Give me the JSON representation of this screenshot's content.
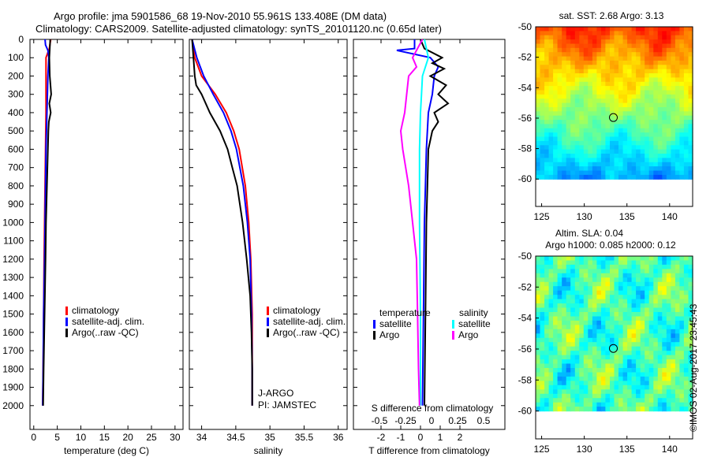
{
  "title": {
    "line1": "Argo profile: jma 5901586_68 19-Nov-2010 55.961S 133.408E (DM data)",
    "line2": "Climatology: CARS2009. Satellite-adjusted climatology: synTS_20101120.nc (0.65d later)"
  },
  "credit": "©IMOS 02-Aug-2017 23:45:43",
  "colors": {
    "climatology": "#ff0000",
    "satellite": "#0000ff",
    "argo": "#000000",
    "sal_satellite": "#00ffff",
    "sal_argo": "#ff00ff"
  },
  "chart_data": [
    {
      "type": "line",
      "id": "temp",
      "xlabel": "temperature (deg C)",
      "ylabel": "",
      "xlim": [
        -0.8,
        31.7
      ],
      "ylim": [
        2130,
        0
      ],
      "xticks": [
        0,
        5,
        10,
        15,
        20,
        25,
        30
      ],
      "yticks": [
        0,
        100,
        200,
        300,
        400,
        500,
        600,
        700,
        800,
        900,
        1000,
        1100,
        1200,
        1300,
        1400,
        1500,
        1600,
        1700,
        1800,
        1900,
        2000
      ],
      "legend": [
        "climatology",
        "satellite-adj. clim.",
        "Argo(..raw -QC)"
      ],
      "series": [
        {
          "name": "climatology",
          "color": "#ff0000",
          "depth": [
            0,
            50,
            100,
            200,
            400,
            600,
            800,
            1000,
            1200,
            1500,
            1800,
            2000
          ],
          "value": [
            3.6,
            3.3,
            2.6,
            2.6,
            2.6,
            2.5,
            2.4,
            2.3,
            2.2,
            2.1,
            2.0,
            1.9
          ]
        },
        {
          "name": "satellite-adj. clim.",
          "color": "#0000ff",
          "depth": [
            0,
            30,
            60,
            100,
            200,
            400,
            600,
            800,
            1000,
            1200,
            1500,
            1800,
            2000
          ],
          "value": [
            2.4,
            2.5,
            3.0,
            3.2,
            3.0,
            2.8,
            2.6,
            2.5,
            2.4,
            2.3,
            2.1,
            2.0,
            1.9
          ]
        },
        {
          "name": "Argo(..raw -QC)",
          "color": "#000000",
          "depth": [
            0,
            50,
            100,
            200,
            300,
            350,
            400,
            450,
            500,
            600,
            800,
            1000,
            1200,
            1500,
            1800,
            2000
          ],
          "value": [
            3.5,
            3.4,
            3.3,
            3.4,
            3.7,
            3.3,
            3.6,
            3.2,
            3.1,
            3.0,
            2.8,
            2.6,
            2.5,
            2.3,
            2.1,
            2.0
          ]
        }
      ]
    },
    {
      "type": "line",
      "id": "sal",
      "xlabel": "salinity",
      "xlim": [
        33.82,
        36.13
      ],
      "ylim": [
        2130,
        0
      ],
      "xticks": [
        34,
        34.5,
        35,
        35.5,
        36
      ],
      "legend": [
        "climatology",
        "satellite-adj. clim.",
        "Argo(..raw -QC)"
      ],
      "annotations": [
        "J-ARGO",
        "PI: JAMSTEC"
      ],
      "series": [
        {
          "name": "climatology",
          "color": "#ff0000",
          "depth": [
            0,
            100,
            200,
            300,
            400,
            500,
            600,
            800,
            1000,
            1200,
            1500,
            1800,
            2000
          ],
          "value": [
            33.86,
            33.9,
            34.0,
            34.2,
            34.36,
            34.47,
            34.55,
            34.64,
            34.69,
            34.72,
            34.74,
            34.74,
            34.74
          ]
        },
        {
          "name": "satellite-adj. clim.",
          "color": "#0000ff",
          "depth": [
            0,
            100,
            200,
            300,
            400,
            500,
            600,
            800,
            1000,
            1200,
            1500,
            1800,
            2000
          ],
          "value": [
            33.86,
            33.93,
            34.03,
            34.17,
            34.32,
            34.43,
            34.51,
            34.61,
            34.67,
            34.71,
            34.73,
            34.74,
            34.74
          ]
        },
        {
          "name": "Argo(..raw -QC)",
          "color": "#000000",
          "depth": [
            0,
            100,
            200,
            250,
            300,
            400,
            500,
            600,
            700,
            800,
            1000,
            1200,
            1400,
            1600,
            1800,
            2000
          ],
          "value": [
            33.86,
            33.88,
            33.9,
            33.92,
            34.0,
            34.12,
            34.27,
            34.38,
            34.45,
            34.52,
            34.6,
            34.66,
            34.71,
            34.73,
            34.74,
            34.74
          ]
        }
      ]
    },
    {
      "type": "line",
      "id": "diff",
      "xlabel": "T difference from climatology",
      "x2label": "S difference from climatology",
      "xlim": [
        -3.4,
        4.28
      ],
      "ylim": [
        2130,
        0
      ],
      "xticks": [
        -2,
        -1,
        0,
        1,
        2
      ],
      "x2ticks": [
        "-0.5",
        "-0.25",
        "0",
        "0.25",
        "0.5"
      ],
      "legend": {
        "temperature_title": "temperature",
        "salinity_title": "salinity",
        "items": [
          "satellite",
          "Argo",
          "satellite",
          "Argo"
        ]
      },
      "series": [
        {
          "name": "T satellite",
          "color": "#0000ff",
          "depth": [
            0,
            50,
            60,
            100,
            150,
            200,
            300,
            400,
            600,
            800,
            1000,
            1500,
            2000
          ],
          "value": [
            -0.3,
            -0.3,
            -1.2,
            0.5,
            0.9,
            0.7,
            0.6,
            0.4,
            0.3,
            0.25,
            0.2,
            0.15,
            0.1
          ]
        },
        {
          "name": "T Argo",
          "color": "#000000",
          "depth": [
            0,
            50,
            100,
            130,
            160,
            200,
            250,
            300,
            350,
            400,
            450,
            500,
            600,
            800,
            1000,
            1500,
            2000
          ],
          "value": [
            0,
            0.2,
            1.1,
            0.6,
            1.2,
            0.5,
            1.3,
            0.9,
            1.4,
            0.7,
            0.9,
            0.6,
            0.4,
            0.35,
            0.3,
            0.25,
            0.2
          ]
        },
        {
          "name": "S satellite",
          "color": "#00ffff",
          "depth": [
            0,
            100,
            200,
            300,
            400,
            600,
            800,
            1000,
            1500,
            2000
          ],
          "value": [
            0.2,
            0.4,
            0.1,
            0.05,
            0.0,
            -0.05,
            -0.05,
            -0.05,
            0.0,
            0.0
          ]
        },
        {
          "name": "S Argo",
          "color": "#ff00ff",
          "depth": [
            0,
            100,
            150,
            200,
            300,
            400,
            500,
            600,
            800,
            1000,
            1200,
            1500,
            1800,
            2000
          ],
          "value": [
            0.1,
            -0.4,
            -0.2,
            -0.6,
            -0.7,
            -0.8,
            -1.0,
            -0.9,
            -0.6,
            -0.4,
            -0.2,
            -0.15,
            -0.1,
            -0.05
          ]
        }
      ]
    },
    {
      "type": "heatmap",
      "id": "sst",
      "title": "sat. SST: 2.68 Argo: 3.13",
      "xticks": [
        125,
        130,
        135,
        140
      ],
      "yticks": [
        -50,
        -52,
        -54,
        -56,
        -58,
        -60
      ],
      "xlim": [
        124.3,
        142.7
      ],
      "ylim": [
        -61.8,
        -50
      ],
      "marker": [
        133.408,
        -55.961
      ]
    },
    {
      "type": "heatmap",
      "id": "sla",
      "title": "Altim. SLA: 0.04",
      "title2": "Argo h1000: 0.085 h2000: 0.12",
      "xticks": [
        125,
        130,
        135,
        140
      ],
      "yticks": [
        -50,
        -52,
        -54,
        -56,
        -58,
        -60
      ],
      "xlim": [
        124.3,
        142.7
      ],
      "ylim": [
        -61.8,
        -50
      ],
      "marker": [
        133.408,
        -55.961
      ]
    }
  ]
}
